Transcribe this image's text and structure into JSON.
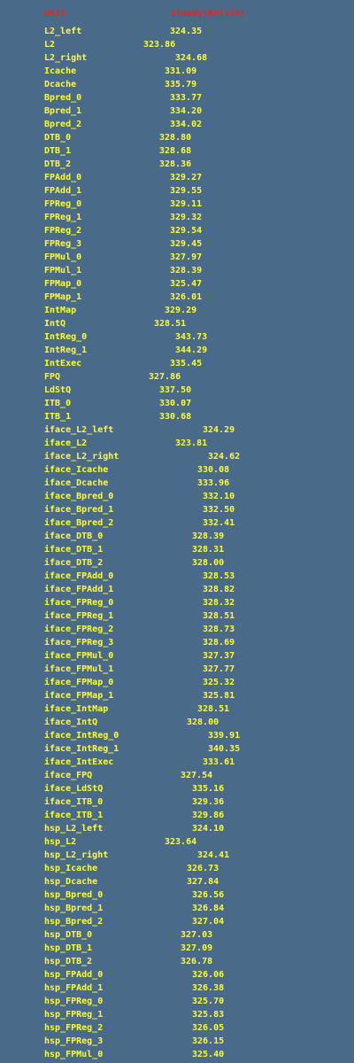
{
  "header": {
    "unit_label": "Unit",
    "value_label": "Steady(Kelvin)"
  },
  "colors": {
    "background": "#4a6a8a",
    "header_text": "#ff1a1a",
    "row_text": "#ffff33"
  },
  "rows": [
    {
      "unit": "L2_left",
      "value": "324.35"
    },
    {
      "unit": "L2",
      "value": "323.86"
    },
    {
      "unit": "L2_right",
      "value": "324.68"
    },
    {
      "unit": "Icache",
      "value": "331.09"
    },
    {
      "unit": "Dcache",
      "value": "335.79"
    },
    {
      "unit": "Bpred_0",
      "value": "333.77"
    },
    {
      "unit": "Bpred_1",
      "value": "334.20"
    },
    {
      "unit": "Bpred_2",
      "value": "334.02"
    },
    {
      "unit": "DTB_0",
      "value": "328.80"
    },
    {
      "unit": "DTB_1",
      "value": "328.68"
    },
    {
      "unit": "DTB_2",
      "value": "328.36"
    },
    {
      "unit": "FPAdd_0",
      "value": "329.27"
    },
    {
      "unit": "FPAdd_1",
      "value": "329.55"
    },
    {
      "unit": "FPReg_0",
      "value": "329.11"
    },
    {
      "unit": "FPReg_1",
      "value": "329.32"
    },
    {
      "unit": "FPReg_2",
      "value": "329.54"
    },
    {
      "unit": "FPReg_3",
      "value": "329.45"
    },
    {
      "unit": "FPMul_0",
      "value": "327.97"
    },
    {
      "unit": "FPMul_1",
      "value": "328.39"
    },
    {
      "unit": "FPMap_0",
      "value": "325.47"
    },
    {
      "unit": "FPMap_1",
      "value": "326.01"
    },
    {
      "unit": "IntMap",
      "value": "329.29"
    },
    {
      "unit": "IntQ",
      "value": "328.51"
    },
    {
      "unit": "IntReg_0",
      "value": "343.73"
    },
    {
      "unit": "IntReg_1",
      "value": "344.29"
    },
    {
      "unit": "IntExec",
      "value": "335.45"
    },
    {
      "unit": "FPQ",
      "value": "327.86"
    },
    {
      "unit": "LdStQ",
      "value": "337.50"
    },
    {
      "unit": "ITB_0",
      "value": "330.07"
    },
    {
      "unit": "ITB_1",
      "value": "330.68"
    },
    {
      "unit": "iface_L2_left",
      "value": "324.29"
    },
    {
      "unit": "iface_L2",
      "value": "323.81"
    },
    {
      "unit": "iface_L2_right",
      "value": "324.62"
    },
    {
      "unit": "iface_Icache",
      "value": "330.08"
    },
    {
      "unit": "iface_Dcache",
      "value": "333.96"
    },
    {
      "unit": "iface_Bpred_0",
      "value": "332.10"
    },
    {
      "unit": "iface_Bpred_1",
      "value": "332.50"
    },
    {
      "unit": "iface_Bpred_2",
      "value": "332.41"
    },
    {
      "unit": "iface_DTB_0",
      "value": "328.39"
    },
    {
      "unit": "iface_DTB_1",
      "value": "328.31"
    },
    {
      "unit": "iface_DTB_2",
      "value": "328.00"
    },
    {
      "unit": "iface_FPAdd_0",
      "value": "328.53"
    },
    {
      "unit": "iface_FPAdd_1",
      "value": "328.82"
    },
    {
      "unit": "iface_FPReg_0",
      "value": "328.32"
    },
    {
      "unit": "iface_FPReg_1",
      "value": "328.51"
    },
    {
      "unit": "iface_FPReg_2",
      "value": "328.73"
    },
    {
      "unit": "iface_FPReg_3",
      "value": "328.69"
    },
    {
      "unit": "iface_FPMul_0",
      "value": "327.37"
    },
    {
      "unit": "iface_FPMul_1",
      "value": "327.77"
    },
    {
      "unit": "iface_FPMap_0",
      "value": "325.32"
    },
    {
      "unit": "iface_FPMap_1",
      "value": "325.81"
    },
    {
      "unit": "iface_IntMap",
      "value": "328.51"
    },
    {
      "unit": "iface_IntQ",
      "value": "328.00"
    },
    {
      "unit": "iface_IntReg_0",
      "value": "339.91"
    },
    {
      "unit": "iface_IntReg_1",
      "value": "340.35"
    },
    {
      "unit": "iface_IntExec",
      "value": "333.61"
    },
    {
      "unit": "iface_FPQ",
      "value": "327.54"
    },
    {
      "unit": "iface_LdStQ",
      "value": "335.16"
    },
    {
      "unit": "iface_ITB_0",
      "value": "329.36"
    },
    {
      "unit": "iface_ITB_1",
      "value": "329.86"
    },
    {
      "unit": "hsp_L2_left",
      "value": "324.10"
    },
    {
      "unit": "hsp_L2",
      "value": "323.64"
    },
    {
      "unit": "hsp_L2_right",
      "value": "324.41"
    },
    {
      "unit": "hsp_Icache",
      "value": "326.73"
    },
    {
      "unit": "hsp_Dcache",
      "value": "327.84"
    },
    {
      "unit": "hsp_Bpred_0",
      "value": "326.56"
    },
    {
      "unit": "hsp_Bpred_1",
      "value": "326.84"
    },
    {
      "unit": "hsp_Bpred_2",
      "value": "327.04"
    },
    {
      "unit": "hsp_DTB_0",
      "value": "327.03"
    },
    {
      "unit": "hsp_DTB_1",
      "value": "327.09"
    },
    {
      "unit": "hsp_DTB_2",
      "value": "326.78"
    },
    {
      "unit": "hsp_FPAdd_0",
      "value": "326.06"
    },
    {
      "unit": "hsp_FPAdd_1",
      "value": "326.38"
    },
    {
      "unit": "hsp_FPReg_0",
      "value": "325.70"
    },
    {
      "unit": "hsp_FPReg_1",
      "value": "325.83"
    },
    {
      "unit": "hsp_FPReg_2",
      "value": "326.05"
    },
    {
      "unit": "hsp_FPReg_3",
      "value": "326.15"
    },
    {
      "unit": "hsp_FPMul_0",
      "value": "325.40"
    }
  ]
}
